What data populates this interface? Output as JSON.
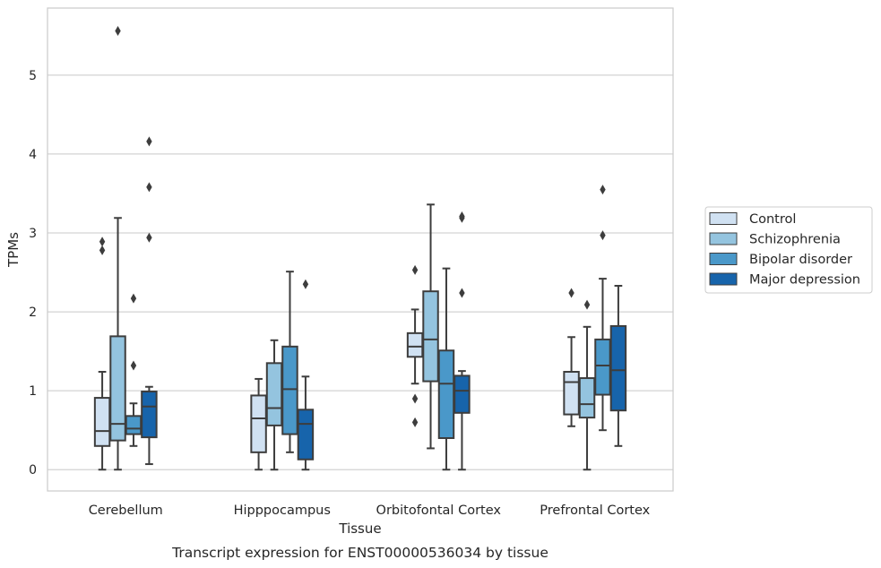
{
  "chart_data": {
    "type": "box",
    "title": "",
    "caption": "Transcript expression for ENST00000536034 by tissue",
    "xlabel": "Tissue",
    "ylabel": "TPMs",
    "ylim": [
      -0.27,
      5.85
    ],
    "yticks": [
      0,
      1,
      2,
      3,
      4,
      5
    ],
    "grid": true,
    "legend_position": "right",
    "categories": [
      "Cerebellum",
      "Hipppocampus",
      "Orbitofontal Cortex",
      "Prefrontal Cortex"
    ],
    "series": [
      {
        "name": "Control",
        "color": "#d0e1f2",
        "boxes": [
          {
            "whislo": 0.0,
            "q1": 0.3,
            "med": 0.49,
            "q3": 0.91,
            "whishi": 1.24,
            "fliers": [
              2.78,
              2.89
            ]
          },
          {
            "whislo": 0.0,
            "q1": 0.22,
            "med": 0.65,
            "q3": 0.94,
            "whishi": 1.15,
            "fliers": []
          },
          {
            "whislo": 1.09,
            "q1": 1.43,
            "med": 1.56,
            "q3": 1.73,
            "whishi": 2.03,
            "fliers": [
              0.6,
              0.9,
              2.53
            ]
          },
          {
            "whislo": 0.55,
            "q1": 0.7,
            "med": 1.11,
            "q3": 1.24,
            "whishi": 1.68,
            "fliers": [
              2.24
            ]
          }
        ]
      },
      {
        "name": "Schizophrenia",
        "color": "#94c4df",
        "boxes": [
          {
            "whislo": 0.0,
            "q1": 0.37,
            "med": 0.58,
            "q3": 1.69,
            "whishi": 3.19,
            "fliers": [
              5.56
            ]
          },
          {
            "whislo": 0.0,
            "q1": 0.56,
            "med": 0.78,
            "q3": 1.35,
            "whishi": 1.64,
            "fliers": []
          },
          {
            "whislo": 0.27,
            "q1": 1.12,
            "med": 1.65,
            "q3": 2.26,
            "whishi": 3.36,
            "fliers": []
          },
          {
            "whislo": 0.0,
            "q1": 0.66,
            "med": 0.83,
            "q3": 1.16,
            "whishi": 1.81,
            "fliers": [
              2.09
            ]
          }
        ]
      },
      {
        "name": "Bipolar disorder",
        "color": "#4a98c9",
        "boxes": [
          {
            "whislo": 0.3,
            "q1": 0.45,
            "med": 0.52,
            "q3": 0.68,
            "whishi": 0.84,
            "fliers": [
              1.32,
              2.17
            ]
          },
          {
            "whislo": 0.22,
            "q1": 0.45,
            "med": 1.02,
            "q3": 1.56,
            "whishi": 2.51,
            "fliers": []
          },
          {
            "whislo": 0.0,
            "q1": 0.4,
            "med": 1.09,
            "q3": 1.51,
            "whishi": 2.55,
            "fliers": []
          },
          {
            "whislo": 0.5,
            "q1": 0.95,
            "med": 1.32,
            "q3": 1.65,
            "whishi": 2.42,
            "fliers": [
              2.97,
              3.55
            ]
          }
        ]
      },
      {
        "name": "Major depression",
        "color": "#1764ab",
        "boxes": [
          {
            "whislo": 0.07,
            "q1": 0.41,
            "med": 0.8,
            "q3": 0.99,
            "whishi": 1.05,
            "fliers": [
              2.94,
              3.58,
              4.16
            ]
          },
          {
            "whislo": 0.0,
            "q1": 0.13,
            "med": 0.58,
            "q3": 0.76,
            "whishi": 1.18,
            "fliers": [
              2.35
            ]
          },
          {
            "whislo": 0.0,
            "q1": 0.72,
            "med": 1.0,
            "q3": 1.19,
            "whishi": 1.25,
            "fliers": [
              2.24,
              3.19,
              3.21
            ]
          },
          {
            "whislo": 0.3,
            "q1": 0.75,
            "med": 1.26,
            "q3": 1.82,
            "whishi": 2.33,
            "fliers": []
          }
        ]
      }
    ]
  }
}
